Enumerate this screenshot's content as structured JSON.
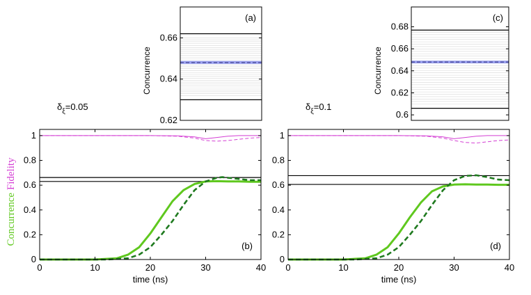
{
  "figure": {
    "ylabel_concurrence": "Concurrence",
    "ylabel_fidelity": "Fidelity",
    "colors": {
      "concurrence": "#5fc81e",
      "concurrence_dashed": "#1f7a1f",
      "fidelity": "#d43fd4",
      "band": "#9aa0ee",
      "band_line": "#2a2a7a",
      "gray_lines": "#d8d8d8",
      "axis": "#000000"
    }
  },
  "chart_data": [
    {
      "id": "a",
      "type": "line",
      "panel_label": "(a)",
      "ylabel": "Concurrence",
      "ylim": [
        0.62,
        0.675
      ],
      "yticks": [
        "0.62",
        "0.64",
        "0.66"
      ],
      "ytick_values": [
        0.62,
        0.64,
        0.66
      ],
      "horizontal_lines": [
        0.662,
        0.63
      ],
      "mean": 0.648,
      "band": [
        0.6474,
        0.6488
      ],
      "gray_range": [
        0.632,
        0.66
      ]
    },
    {
      "id": "b",
      "type": "line",
      "panel_label": "(b)",
      "delta_label": "δ",
      "delta_sub": "ξ",
      "delta_value": "=0.05",
      "xlabel": "time (ns)",
      "xlim": [
        0,
        40
      ],
      "ylim": [
        0,
        1.05
      ],
      "xticks": [
        "0",
        "10",
        "20",
        "30",
        "40"
      ],
      "xtick_values": [
        0,
        10,
        20,
        30,
        40
      ],
      "yticks": [
        "0",
        "0.2",
        "0.4",
        "0.6",
        "0.8",
        "1"
      ],
      "ytick_values": [
        0,
        0.2,
        0.4,
        0.6,
        0.8,
        1
      ],
      "horizontal_lines": [
        0.662,
        0.63
      ],
      "series": [
        {
          "name": "concurrence-solid",
          "style": "solid",
          "x": [
            0,
            10,
            14,
            16,
            18,
            20,
            22,
            24,
            26,
            28,
            30,
            32,
            34,
            36,
            38,
            40
          ],
          "y": [
            0,
            0,
            0.01,
            0.04,
            0.1,
            0.21,
            0.34,
            0.47,
            0.56,
            0.61,
            0.63,
            0.632,
            0.63,
            0.63,
            0.628,
            0.628
          ]
        },
        {
          "name": "concurrence-dashed",
          "style": "dashed",
          "x": [
            0,
            12,
            16,
            18,
            20,
            22,
            24,
            26,
            28,
            30,
            32,
            33,
            34,
            36,
            38,
            40
          ],
          "y": [
            0,
            0,
            0.01,
            0.04,
            0.1,
            0.2,
            0.31,
            0.44,
            0.56,
            0.63,
            0.66,
            0.665,
            0.66,
            0.65,
            0.64,
            0.64
          ]
        },
        {
          "name": "fidelity-solid",
          "style": "solid-thin",
          "x": [
            0,
            10,
            20,
            25,
            28,
            30,
            32,
            34,
            36,
            38,
            40
          ],
          "y": [
            1.0,
            1.0,
            1.0,
            0.998,
            0.99,
            0.975,
            0.985,
            0.995,
            1.0,
            1.0,
            1.0
          ]
        },
        {
          "name": "fidelity-dashed",
          "style": "dashed-thin",
          "x": [
            0,
            10,
            20,
            25,
            28,
            30,
            32,
            34,
            36,
            38,
            40
          ],
          "y": [
            1.0,
            1.0,
            1.0,
            0.995,
            0.98,
            0.96,
            0.955,
            0.96,
            0.97,
            0.98,
            0.985
          ]
        }
      ]
    },
    {
      "id": "c",
      "type": "line",
      "panel_label": "(c)",
      "ylabel": "Concurrence",
      "ylim": [
        0.595,
        0.698
      ],
      "yticks": [
        "0.6",
        "0.62",
        "0.64",
        "0.66",
        "0.68"
      ],
      "ytick_values": [
        0.6,
        0.62,
        0.64,
        0.66,
        0.68
      ],
      "horizontal_lines": [
        0.677,
        0.606
      ],
      "mean": 0.648,
      "band": [
        0.6468,
        0.6492
      ],
      "gray_range": [
        0.61,
        0.675
      ]
    },
    {
      "id": "d",
      "type": "line",
      "panel_label": "(d)",
      "delta_label": "δ",
      "delta_sub": "ξ",
      "delta_value": "=0.1",
      "xlabel": "time (ns)",
      "xlim": [
        0,
        40
      ],
      "ylim": [
        0,
        1.05
      ],
      "xticks": [
        "0",
        "10",
        "20",
        "30",
        "40"
      ],
      "xtick_values": [
        0,
        10,
        20,
        30,
        40
      ],
      "yticks": [
        "0",
        "0.2",
        "0.4",
        "0.6",
        "0.8",
        "1"
      ],
      "ytick_values": [
        0,
        0.2,
        0.4,
        0.6,
        0.8,
        1
      ],
      "horizontal_lines": [
        0.677,
        0.606
      ],
      "series": [
        {
          "name": "concurrence-solid",
          "style": "solid",
          "x": [
            0,
            10,
            14,
            16,
            18,
            20,
            22,
            24,
            26,
            28,
            30,
            32,
            34,
            36,
            38,
            40
          ],
          "y": [
            0,
            0,
            0.01,
            0.04,
            0.1,
            0.21,
            0.34,
            0.46,
            0.55,
            0.59,
            0.605,
            0.607,
            0.605,
            0.605,
            0.603,
            0.603
          ]
        },
        {
          "name": "concurrence-dashed",
          "style": "dashed",
          "x": [
            0,
            12,
            16,
            18,
            20,
            22,
            24,
            26,
            28,
            30,
            32,
            34,
            36,
            38,
            40
          ],
          "y": [
            0,
            0,
            0.01,
            0.04,
            0.1,
            0.2,
            0.31,
            0.44,
            0.56,
            0.64,
            0.675,
            0.68,
            0.665,
            0.645,
            0.64
          ]
        },
        {
          "name": "fidelity-solid",
          "style": "solid-thin",
          "x": [
            0,
            10,
            20,
            25,
            28,
            30,
            32,
            34,
            36,
            38,
            40
          ],
          "y": [
            1.0,
            1.0,
            1.0,
            0.998,
            0.99,
            0.975,
            0.985,
            0.995,
            1.0,
            1.0,
            1.0
          ]
        },
        {
          "name": "fidelity-dashed",
          "style": "dashed-thin",
          "x": [
            0,
            10,
            20,
            25,
            28,
            30,
            32,
            34,
            36,
            38,
            40
          ],
          "y": [
            1.0,
            1.0,
            1.0,
            0.995,
            0.98,
            0.96,
            0.945,
            0.94,
            0.95,
            0.96,
            0.965
          ]
        }
      ]
    }
  ]
}
